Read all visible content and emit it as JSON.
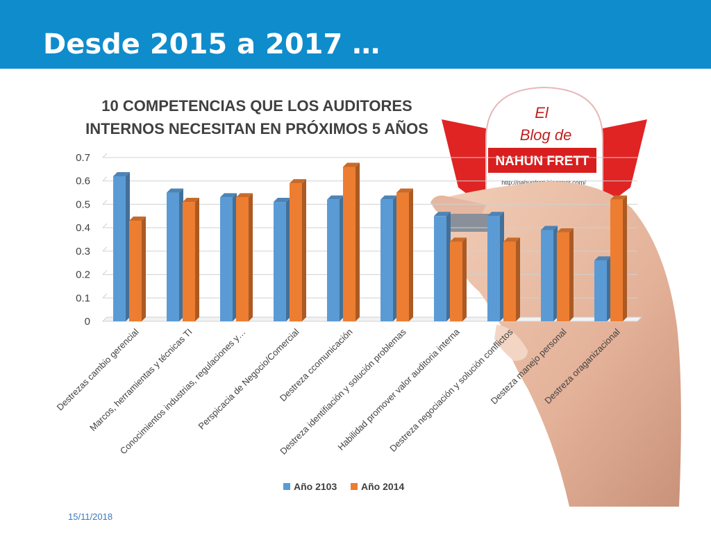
{
  "slide": {
    "title": "Desde 2015 a 2017 …",
    "date": "15/11/2018"
  },
  "colors": {
    "header": "#0f8ccc",
    "series_blue": "#5b9bd5",
    "series_orange": "#ed7d31"
  },
  "badge": {
    "line1": "El",
    "line2": "Blog de",
    "name": "NAHUN FRETT",
    "url": "http://nahunfrett.blogspot.com/"
  },
  "chart_data": {
    "type": "bar",
    "title": "10 COMPETENCIAS QUE LOS AUDITORES INTERNOS NECESITAN EN PRÓXIMOS 5 AÑOS",
    "title_lines": [
      "10 COMPETENCIAS QUE LOS AUDITORES",
      "INTERNOS NECESITAN EN PRÓXIMOS 5 AÑOS"
    ],
    "categories": [
      "Destrezas cambio gerencial",
      "Marcos, herramientas y técnicas TI",
      "Conocimientos industrias, regulaciones y…",
      "Perspicacia de Negocio/Comercial",
      "Destreza ccomunicación",
      "Destreza identifiación y solución problemas",
      "Habilidad promover valor auditoria interna",
      "Destreza negociación y solución conflictos",
      "Desteza manejo personal",
      "Destreza oraganizacional"
    ],
    "series": [
      {
        "name": "Año 2103",
        "values": [
          0.62,
          0.55,
          0.53,
          0.51,
          0.52,
          0.52,
          0.45,
          0.45,
          0.39,
          0.26
        ]
      },
      {
        "name": "Año 2014",
        "values": [
          0.43,
          0.51,
          0.53,
          0.59,
          0.66,
          0.55,
          0.34,
          0.34,
          0.38,
          0.52
        ]
      }
    ],
    "ylim": [
      0,
      0.7
    ],
    "yticks": [
      "0",
      "0.1",
      "0.2",
      "0.3",
      "0.4",
      "0.5",
      "0.6",
      "0.7"
    ],
    "grid": true,
    "legend_position": "bottom"
  }
}
